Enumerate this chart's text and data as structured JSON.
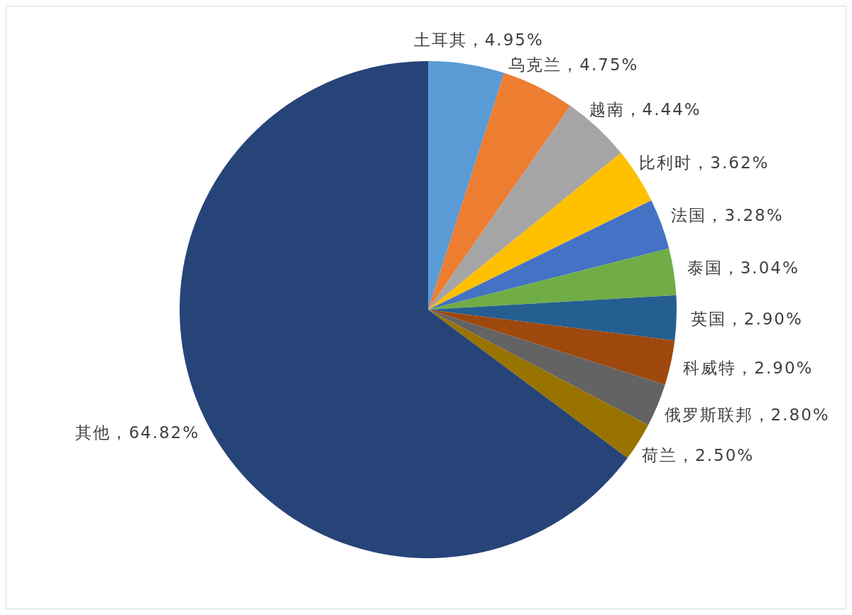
{
  "chart_data": {
    "type": "pie",
    "categories": [
      "土耳其",
      "乌克兰",
      "越南",
      "比利时",
      "法国",
      "泰国",
      "英国",
      "科威特",
      "俄罗斯联邦",
      "荷兰",
      "其他"
    ],
    "values": [
      4.95,
      4.75,
      4.44,
      3.62,
      3.28,
      3.04,
      2.9,
      2.9,
      2.8,
      2.5,
      64.82
    ],
    "colors": [
      "#5b9bd5",
      "#ed7d31",
      "#a5a5a5",
      "#ffc000",
      "#4472c4",
      "#70ad47",
      "#255e91",
      "#9e480e",
      "#636363",
      "#997300",
      "#264478"
    ],
    "value_labels": [
      "4.95%",
      "4.75%",
      "4.44%",
      "3.62%",
      "3.28%",
      "3.04%",
      "2.90%",
      "2.90%",
      "2.80%",
      "2.50%",
      "64.82%"
    ]
  }
}
